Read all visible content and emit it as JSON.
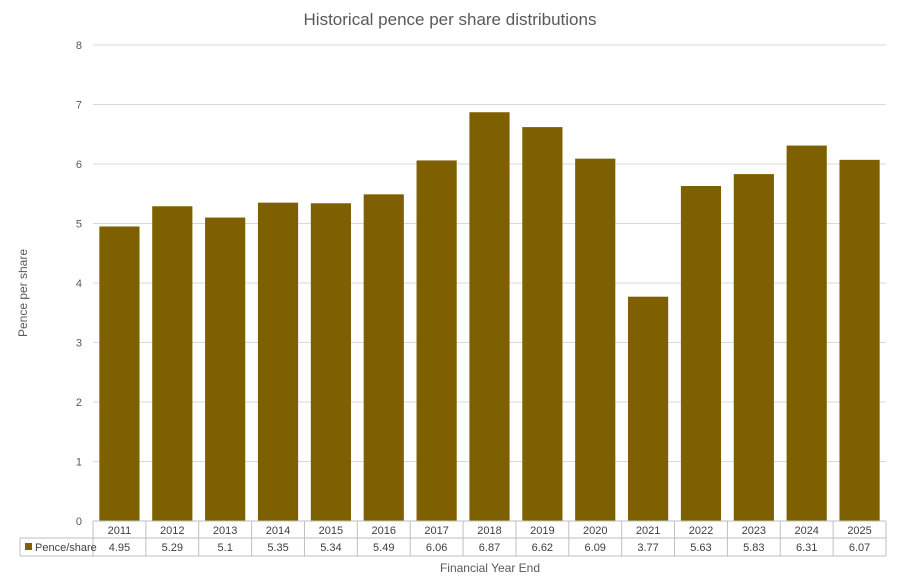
{
  "chart_data": {
    "type": "bar",
    "title": "Historical pence per share distributions",
    "xlabel": "Financial Year End",
    "ylabel": "Pence per share",
    "ylim": [
      0,
      8
    ],
    "yticks": [
      0,
      1,
      2,
      3,
      4,
      5,
      6,
      7,
      8
    ],
    "grid": true,
    "legend_placement": "data-table",
    "categories": [
      "2011",
      "2012",
      "2013",
      "2014",
      "2015",
      "2016",
      "2017",
      "2018",
      "2019",
      "2020",
      "2021",
      "2022",
      "2023",
      "2024",
      "2025"
    ],
    "series": [
      {
        "name": "Pence/share",
        "color": "#7f6000",
        "values": [
          4.95,
          5.29,
          5.1,
          5.35,
          5.34,
          5.49,
          6.06,
          6.87,
          6.62,
          6.09,
          3.77,
          5.63,
          5.83,
          6.31,
          6.07
        ],
        "labels": [
          "4.95",
          "5.29",
          "5.1",
          "5.35",
          "5.34",
          "5.49",
          "6.06",
          "6.87",
          "6.62",
          "6.09",
          "3.77",
          "5.63",
          "5.83",
          "6.31",
          "6.07"
        ]
      }
    ]
  }
}
